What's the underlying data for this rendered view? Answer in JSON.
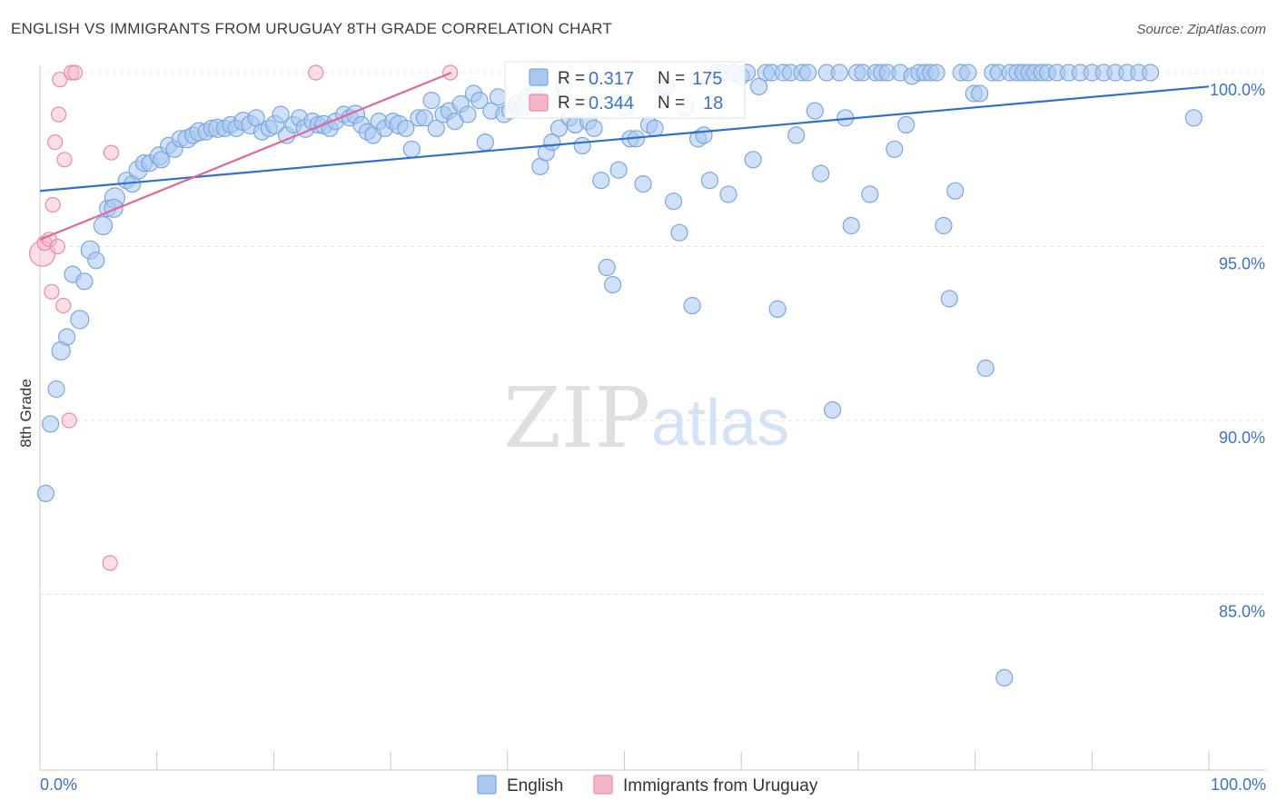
{
  "title": "ENGLISH VS IMMIGRANTS FROM URUGUAY 8TH GRADE CORRELATION CHART",
  "source": "Source: ZipAtlas.com",
  "watermark": {
    "zip": "ZIP",
    "atlas": "atlas"
  },
  "stats": [
    {
      "r_label": "R =",
      "r_value": "0.317",
      "n_label": "N =",
      "n_value": "175",
      "color": "#a9c8f0",
      "stroke": "#7aa6e0"
    },
    {
      "r_label": "R =",
      "r_value": "0.344",
      "n_label": "N =",
      "n_value": "18",
      "color": "#f6b6c8",
      "stroke": "#e98aa6"
    }
  ],
  "legend": [
    {
      "label": "English",
      "color": "#a9c8f0",
      "stroke": "#7aa6e0"
    },
    {
      "label": "Immigrants from Uruguay",
      "color": "#f6b6c8",
      "stroke": "#e98aa6"
    }
  ],
  "chart_data": {
    "type": "scatter",
    "title": "ENGLISH VS IMMIGRANTS FROM URUGUAY 8TH GRADE CORRELATION CHART",
    "xlabel": "",
    "ylabel": "8th Grade",
    "xlim": [
      0,
      100
    ],
    "ylim": [
      80.5,
      100.5
    ],
    "x_tick_labels": [
      "0.0%",
      "100.0%"
    ],
    "y_ticks": [
      85,
      90,
      95,
      100
    ],
    "y_tick_labels": [
      "85.0%",
      "90.0%",
      "95.0%",
      "100.0%"
    ],
    "legend_position": "bottom-center",
    "series": [
      {
        "name": "English",
        "color": "#a9c8f0",
        "stroke": "#7aa6e0",
        "trend": {
          "x": [
            0,
            100
          ],
          "y": [
            96.6,
            99.6
          ],
          "color": "#2f6fcf"
        },
        "points": [
          [
            0.5,
            87.9,
            9
          ],
          [
            0.9,
            89.9,
            9
          ],
          [
            1.4,
            90.9,
            9
          ],
          [
            1.8,
            92.0,
            10
          ],
          [
            2.3,
            92.4,
            9
          ],
          [
            3.4,
            92.9,
            10
          ],
          [
            2.8,
            94.2,
            9
          ],
          [
            3.8,
            94.0,
            9
          ],
          [
            4.3,
            94.9,
            10
          ],
          [
            4.8,
            94.6,
            9
          ],
          [
            5.4,
            95.6,
            10
          ],
          [
            5.8,
            96.1,
            9
          ],
          [
            6.4,
            96.4,
            11
          ],
          [
            6.3,
            96.1,
            10
          ],
          [
            7.4,
            96.9,
            9
          ],
          [
            7.9,
            96.8,
            9
          ],
          [
            8.4,
            97.2,
            10
          ],
          [
            8.9,
            97.4,
            9
          ],
          [
            9.4,
            97.4,
            9
          ],
          [
            10.2,
            97.6,
            10
          ],
          [
            10.4,
            97.5,
            9
          ],
          [
            11.0,
            97.9,
            9
          ],
          [
            11.5,
            97.8,
            9
          ],
          [
            12.0,
            98.1,
            9
          ],
          [
            12.6,
            98.1,
            10
          ],
          [
            13.1,
            98.2,
            9
          ],
          [
            13.6,
            98.3,
            10
          ],
          [
            14.2,
            98.3,
            9
          ],
          [
            14.7,
            98.4,
            9
          ],
          [
            15.2,
            98.4,
            10
          ],
          [
            15.8,
            98.4,
            9
          ],
          [
            16.3,
            98.5,
            9
          ],
          [
            16.8,
            98.4,
            9
          ],
          [
            17.4,
            98.6,
            10
          ],
          [
            18.0,
            98.5,
            10
          ],
          [
            18.5,
            98.7,
            9
          ],
          [
            19.0,
            98.3,
            9
          ],
          [
            19.6,
            98.4,
            9
          ],
          [
            20.1,
            98.5,
            10
          ],
          [
            20.6,
            98.8,
            9
          ],
          [
            21.1,
            98.2,
            9
          ],
          [
            21.7,
            98.5,
            9
          ],
          [
            22.2,
            98.7,
            9
          ],
          [
            22.7,
            98.4,
            10
          ],
          [
            23.3,
            98.6,
            9
          ],
          [
            23.8,
            98.5,
            9
          ],
          [
            24.3,
            98.5,
            10
          ],
          [
            24.8,
            98.4,
            9
          ],
          [
            25.3,
            98.6,
            9
          ],
          [
            26.0,
            98.8,
            9
          ],
          [
            26.5,
            98.7,
            9
          ],
          [
            27.0,
            98.8,
            10
          ],
          [
            27.5,
            98.5,
            9
          ],
          [
            28.0,
            98.3,
            9
          ],
          [
            28.5,
            98.2,
            9
          ],
          [
            29.0,
            98.6,
            9
          ],
          [
            29.5,
            98.4,
            9
          ],
          [
            30.2,
            98.6,
            9
          ],
          [
            30.7,
            98.5,
            10
          ],
          [
            31.3,
            98.4,
            9
          ],
          [
            31.8,
            97.8,
            9
          ],
          [
            32.4,
            98.7,
            9
          ],
          [
            32.9,
            98.7,
            9
          ],
          [
            33.5,
            99.2,
            9
          ],
          [
            33.9,
            98.4,
            9
          ],
          [
            34.5,
            98.8,
            9
          ],
          [
            35.0,
            98.9,
            9
          ],
          [
            35.5,
            98.6,
            9
          ],
          [
            36.0,
            99.1,
            9
          ],
          [
            36.6,
            98.8,
            9
          ],
          [
            37.1,
            99.4,
            9
          ],
          [
            37.6,
            99.2,
            9
          ],
          [
            38.1,
            98.0,
            9
          ],
          [
            38.6,
            98.9,
            9
          ],
          [
            39.2,
            99.3,
            9
          ],
          [
            39.7,
            98.8,
            9
          ],
          [
            40.2,
            98.9,
            9
          ],
          [
            40.8,
            99.1,
            9
          ],
          [
            41.2,
            99.0,
            9
          ],
          [
            41.7,
            99.3,
            9
          ],
          [
            42.3,
            99.4,
            9
          ],
          [
            42.8,
            97.3,
            9
          ],
          [
            43.3,
            97.7,
            9
          ],
          [
            43.8,
            98.0,
            9
          ],
          [
            44.4,
            98.4,
            9
          ],
          [
            44.8,
            99.6,
            9
          ],
          [
            45.3,
            98.7,
            9
          ],
          [
            45.8,
            98.5,
            9
          ],
          [
            46.4,
            97.9,
            9
          ],
          [
            46.9,
            98.6,
            9
          ],
          [
            47.4,
            98.4,
            9
          ],
          [
            48.0,
            96.9,
            9
          ],
          [
            48.5,
            94.4,
            9
          ],
          [
            49.0,
            93.9,
            9
          ],
          [
            49.5,
            97.2,
            9
          ],
          [
            50.1,
            99.0,
            9
          ],
          [
            50.5,
            98.1,
            9
          ],
          [
            51.0,
            98.1,
            9
          ],
          [
            51.6,
            96.8,
            9
          ],
          [
            52.1,
            98.5,
            9
          ],
          [
            52.6,
            98.4,
            9
          ],
          [
            53.2,
            99.6,
            9
          ],
          [
            53.6,
            99.6,
            9
          ],
          [
            54.2,
            96.3,
            9
          ],
          [
            54.7,
            95.4,
            9
          ],
          [
            55.2,
            99.0,
            9
          ],
          [
            55.8,
            93.3,
            9
          ],
          [
            56.3,
            98.1,
            9
          ],
          [
            56.8,
            98.2,
            9
          ],
          [
            57.3,
            96.9,
            9
          ],
          [
            57.9,
            100.0,
            9
          ],
          [
            58.4,
            100.0,
            9
          ],
          [
            58.9,
            96.5,
            9
          ],
          [
            59.4,
            100.0,
            9
          ],
          [
            60.0,
            99.9,
            9
          ],
          [
            60.5,
            100.0,
            9
          ],
          [
            61.0,
            97.5,
            9
          ],
          [
            61.5,
            99.6,
            9
          ],
          [
            62.1,
            100.0,
            9
          ],
          [
            62.6,
            100.0,
            9
          ],
          [
            63.1,
            93.2,
            9
          ],
          [
            63.6,
            100.0,
            9
          ],
          [
            64.2,
            100.0,
            9
          ],
          [
            64.7,
            98.2,
            9
          ],
          [
            65.2,
            100.0,
            9
          ],
          [
            65.7,
            100.0,
            9
          ],
          [
            66.3,
            98.9,
            9
          ],
          [
            66.8,
            97.1,
            9
          ],
          [
            67.3,
            100.0,
            9
          ],
          [
            67.8,
            90.3,
            9
          ],
          [
            68.4,
            100.0,
            9
          ],
          [
            68.9,
            98.7,
            9
          ],
          [
            69.4,
            95.6,
            9
          ],
          [
            69.9,
            100.0,
            9
          ],
          [
            70.4,
            100.0,
            9
          ],
          [
            71.0,
            96.5,
            9
          ],
          [
            71.5,
            100.0,
            9
          ],
          [
            72.0,
            100.0,
            9
          ],
          [
            72.5,
            100.0,
            9
          ],
          [
            73.1,
            97.8,
            9
          ],
          [
            73.6,
            100.0,
            9
          ],
          [
            74.1,
            98.5,
            9
          ],
          [
            74.6,
            99.9,
            9
          ],
          [
            75.2,
            100.0,
            9
          ],
          [
            75.7,
            100.0,
            9
          ],
          [
            76.2,
            100.0,
            9
          ],
          [
            76.7,
            100.0,
            9
          ],
          [
            77.3,
            95.6,
            9
          ],
          [
            77.8,
            93.5,
            9
          ],
          [
            78.3,
            96.6,
            9
          ],
          [
            78.8,
            100.0,
            9
          ],
          [
            79.4,
            100.0,
            9
          ],
          [
            79.9,
            99.4,
            9
          ],
          [
            80.4,
            99.4,
            9
          ],
          [
            80.9,
            91.5,
            9
          ],
          [
            81.5,
            100.0,
            9
          ],
          [
            82.0,
            100.0,
            9
          ],
          [
            82.5,
            82.6,
            9
          ],
          [
            83.0,
            100.0,
            9
          ],
          [
            83.6,
            100.0,
            9
          ],
          [
            84.1,
            100.0,
            9
          ],
          [
            84.6,
            100.0,
            9
          ],
          [
            85.1,
            100.0,
            9
          ],
          [
            85.7,
            100.0,
            9
          ],
          [
            86.2,
            100.0,
            9
          ],
          [
            87.0,
            100.0,
            9
          ],
          [
            88.0,
            100.0,
            9
          ],
          [
            89.0,
            100.0,
            9
          ],
          [
            90.0,
            100.0,
            9
          ],
          [
            91.0,
            100.0,
            9
          ],
          [
            92.0,
            100.0,
            9
          ],
          [
            93.0,
            100.0,
            9
          ],
          [
            94.0,
            100.0,
            9
          ],
          [
            95.0,
            100.0,
            9
          ],
          [
            98.7,
            98.7,
            9
          ]
        ]
      },
      {
        "name": "Immigrants from Uruguay",
        "color": "#f6b6c8",
        "stroke": "#e98aa6",
        "trend": {
          "x": [
            0,
            35.2
          ],
          "y": [
            95.2,
            100.0
          ],
          "color": "#e0679a"
        },
        "points": [
          [
            0.2,
            94.8,
            14
          ],
          [
            0.4,
            95.1,
            8
          ],
          [
            0.8,
            95.2,
            8
          ],
          [
            1.0,
            93.7,
            8
          ],
          [
            1.1,
            96.2,
            8
          ],
          [
            1.3,
            98.0,
            8
          ],
          [
            1.5,
            95.0,
            8
          ],
          [
            1.6,
            98.8,
            8
          ],
          [
            1.7,
            99.8,
            8
          ],
          [
            2.0,
            93.3,
            8
          ],
          [
            2.1,
            97.5,
            8
          ],
          [
            2.5,
            90.0,
            8
          ],
          [
            2.7,
            100.0,
            8
          ],
          [
            3.0,
            100.0,
            8
          ],
          [
            6.1,
            97.7,
            8
          ],
          [
            6.0,
            85.9,
            8
          ],
          [
            23.6,
            100.0,
            8
          ],
          [
            35.1,
            100.0,
            8
          ]
        ]
      }
    ]
  }
}
